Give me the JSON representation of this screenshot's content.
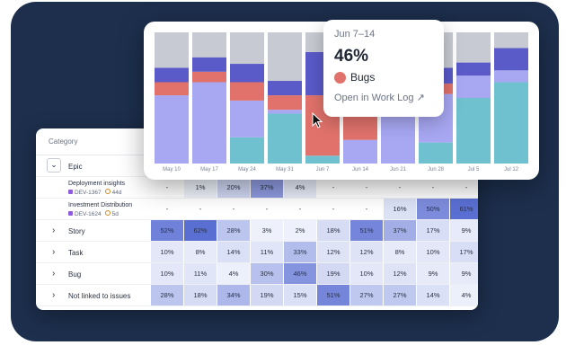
{
  "table": {
    "header": "Category",
    "rows": [
      {
        "name": "epic",
        "label": "Epic",
        "expand": "⌄",
        "cells": []
      },
      {
        "name": "deployment-insights",
        "label": "Deployment insights",
        "key": "DEV-1367",
        "age": "44d",
        "cells": [
          {
            "v": "-",
            "c": "#ffffff"
          },
          {
            "v": "1%",
            "c": "#eef1fb"
          },
          {
            "v": "20%",
            "c": "#cfd6f2"
          },
          {
            "v": "37%",
            "c": "#8f9be0"
          },
          {
            "v": "4%",
            "c": "#e9edfa"
          },
          {
            "v": "-",
            "c": "#ffffff"
          },
          {
            "v": "-",
            "c": "#ffffff"
          },
          {
            "v": "-",
            "c": "#ffffff"
          },
          {
            "v": "-",
            "c": "#ffffff"
          },
          {
            "v": "-",
            "c": "#ffffff"
          }
        ]
      },
      {
        "name": "investment-distribution",
        "label": "Investment Distribution",
        "key": "DEV-1624",
        "age": "5d",
        "cells": [
          {
            "v": "-",
            "c": "#ffffff"
          },
          {
            "v": "-",
            "c": "#ffffff"
          },
          {
            "v": "-",
            "c": "#ffffff"
          },
          {
            "v": "-",
            "c": "#ffffff"
          },
          {
            "v": "-",
            "c": "#ffffff"
          },
          {
            "v": "-",
            "c": "#ffffff"
          },
          {
            "v": "-",
            "c": "#ffffff"
          },
          {
            "v": "16%",
            "c": "#dce2f6"
          },
          {
            "v": "50%",
            "c": "#7d8cdc"
          },
          {
            "v": "61%",
            "c": "#5a6fd2"
          }
        ]
      },
      {
        "name": "story",
        "label": "Story",
        "expand": "›",
        "cells": [
          {
            "v": "52%",
            "c": "#6f81d8"
          },
          {
            "v": "62%",
            "c": "#5a6fd2"
          },
          {
            "v": "28%",
            "c": "#bcc5ee"
          },
          {
            "v": "3%",
            "c": "#eef1fb"
          },
          {
            "v": "2%",
            "c": "#eef1fb"
          },
          {
            "v": "18%",
            "c": "#d6dcf4"
          },
          {
            "v": "51%",
            "c": "#7485da"
          },
          {
            "v": "37%",
            "c": "#a3aee6"
          },
          {
            "v": "17%",
            "c": "#d8def5"
          },
          {
            "v": "9%",
            "c": "#e6eaf9"
          }
        ]
      },
      {
        "name": "task",
        "label": "Task",
        "expand": "›",
        "cells": [
          {
            "v": "10%",
            "c": "#e3e7f8"
          },
          {
            "v": "8%",
            "c": "#e6eaf9"
          },
          {
            "v": "14%",
            "c": "#dae0f5"
          },
          {
            "v": "11%",
            "c": "#e0e5f7"
          },
          {
            "v": "33%",
            "c": "#b3bdeb"
          },
          {
            "v": "12%",
            "c": "#dee3f6"
          },
          {
            "v": "12%",
            "c": "#dee3f6"
          },
          {
            "v": "8%",
            "c": "#e6eaf9"
          },
          {
            "v": "10%",
            "c": "#e3e7f8"
          },
          {
            "v": "17%",
            "c": "#d8def5"
          }
        ]
      },
      {
        "name": "bug",
        "label": "Bug",
        "expand": "›",
        "cells": [
          {
            "v": "10%",
            "c": "#e3e7f8"
          },
          {
            "v": "11%",
            "c": "#e0e5f7"
          },
          {
            "v": "4%",
            "c": "#ecf0fb"
          },
          {
            "v": "30%",
            "c": "#b8c1ed"
          },
          {
            "v": "46%",
            "c": "#8594de"
          },
          {
            "v": "19%",
            "c": "#d3d9f3"
          },
          {
            "v": "10%",
            "c": "#e3e7f8"
          },
          {
            "v": "12%",
            "c": "#dee3f6"
          },
          {
            "v": "9%",
            "c": "#e6eaf9"
          },
          {
            "v": "9%",
            "c": "#e6eaf9"
          }
        ]
      },
      {
        "name": "not-linked",
        "label": "Not linked to issues",
        "expand": "›",
        "cells": [
          {
            "v": "28%",
            "c": "#bcc5ee"
          },
          {
            "v": "18%",
            "c": "#d6dcf4"
          },
          {
            "v": "34%",
            "c": "#adb7ea"
          },
          {
            "v": "19%",
            "c": "#d3d9f3"
          },
          {
            "v": "15%",
            "c": "#dae0f5"
          },
          {
            "v": "51%",
            "c": "#7485da"
          },
          {
            "v": "27%",
            "c": "#bfc8ef"
          },
          {
            "v": "27%",
            "c": "#bfc8ef"
          },
          {
            "v": "14%",
            "c": "#dae0f5"
          },
          {
            "v": "4%",
            "c": "#ecf0fb"
          }
        ]
      }
    ]
  },
  "chart_data": {
    "type": "bar",
    "stacked": true,
    "categories": [
      "May 10",
      "May 17",
      "May 24",
      "May 31",
      "Jun 7",
      "Jun 14",
      "Jun 21",
      "Jun 28",
      "Jul 5",
      "Jul 12"
    ],
    "ylim": [
      0,
      100
    ],
    "series": [
      {
        "color": "#6fc1cf",
        "values": [
          0,
          0,
          20,
          38,
          6,
          0,
          0,
          16,
          50,
          62
        ]
      },
      {
        "color": "#a7a7f2",
        "values": [
          52,
          62,
          28,
          3,
          0,
          18,
          51,
          37,
          17,
          9
        ]
      },
      {
        "color": "#e1726b",
        "values": [
          10,
          8,
          14,
          11,
          46,
          19,
          0,
          8,
          0,
          0
        ]
      },
      {
        "color": "#5a5ac9",
        "values": [
          11,
          11,
          14,
          11,
          33,
          12,
          12,
          12,
          10,
          17
        ]
      },
      {
        "color": "#c8cad3",
        "values": [
          27,
          19,
          24,
          37,
          15,
          51,
          37,
          27,
          23,
          12
        ]
      }
    ]
  },
  "tooltip": {
    "date": "Jun 7–14",
    "percent": "46%",
    "category": "Bugs",
    "link": "Open in Work Log ↗",
    "dot_color": "#e1726b"
  }
}
